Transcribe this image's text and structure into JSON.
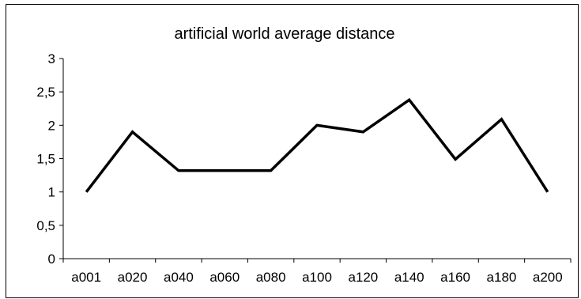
{
  "chart_data": {
    "type": "line",
    "title": "artificial world average distance",
    "categories": [
      "a001",
      "a020",
      "a040",
      "a060",
      "a080",
      "a100",
      "a120",
      "a140",
      "a160",
      "a180",
      "a200"
    ],
    "series": [
      {
        "values": [
          1.0,
          1.9,
          1.32,
          1.32,
          1.32,
          2.0,
          1.9,
          2.38,
          1.49,
          2.09,
          1.0
        ],
        "color": "#000000"
      }
    ],
    "yticks": [
      "0",
      "0,5",
      "1",
      "1,5",
      "2",
      "2,5",
      "3"
    ],
    "ylim": [
      0,
      3
    ],
    "grid": false,
    "legend": "none"
  }
}
